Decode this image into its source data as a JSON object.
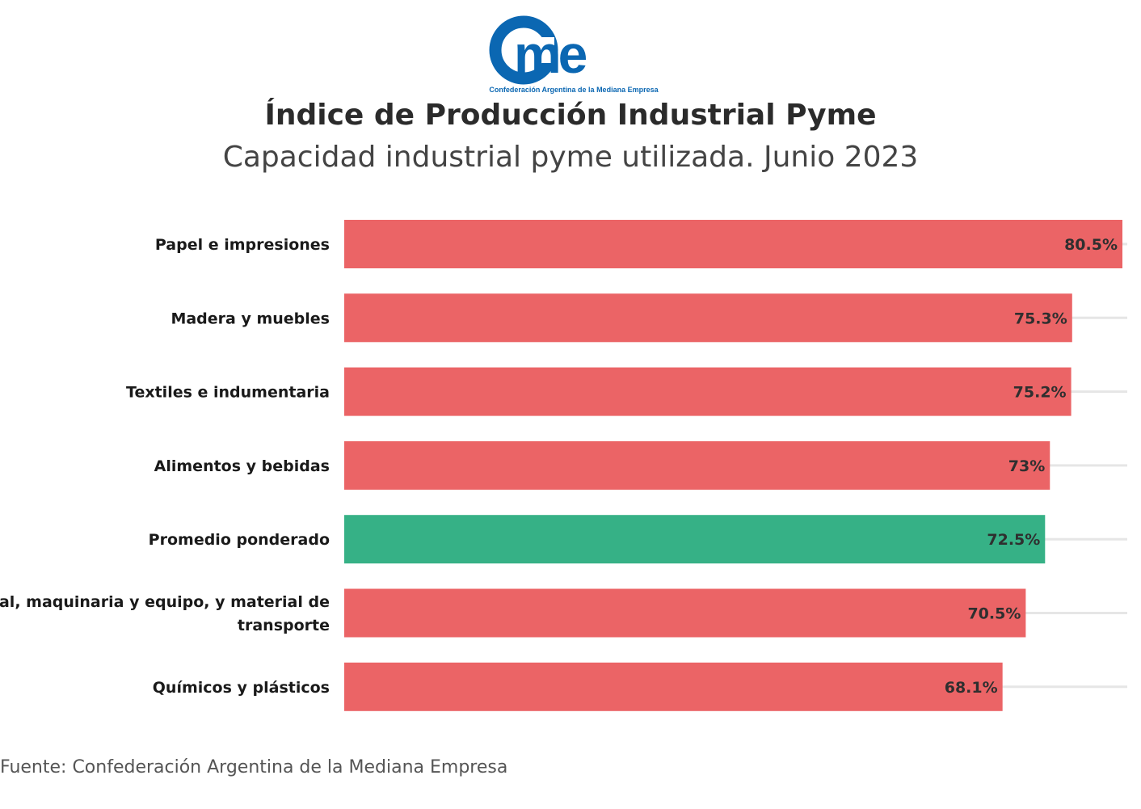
{
  "logo": {
    "wordmark": "came",
    "tagline": "Confederación Argentina de la Mediana Empresa",
    "color": "#0b67b2"
  },
  "title": "Índice de Producción Industrial Pyme",
  "subtitle": "Capacidad industrial pyme utilizada. Junio 2023",
  "source": "Fuente: Confederación Argentina de la Mediana Empresa",
  "chart_data": {
    "type": "bar",
    "orientation": "horizontal",
    "categories": [
      "Papel e impresiones",
      "Madera y muebles",
      "Textiles e indumentaria",
      "Alimentos y bebidas",
      "Promedio ponderado",
      "Metal, maquinaria y equipo, y material de transporte",
      "Químicos y plásticos"
    ],
    "values": [
      80.5,
      75.3,
      75.2,
      73,
      72.5,
      70.5,
      68.1
    ],
    "value_labels": [
      "80.5%",
      "75.3%",
      "75.2%",
      "73%",
      "72.5%",
      "70.5%",
      "68.1%"
    ],
    "colors": [
      "#eb6466",
      "#eb6466",
      "#eb6466",
      "#eb6466",
      "#36b186",
      "#eb6466",
      "#eb6466"
    ],
    "xlim": [
      0,
      80.5
    ],
    "grid": true,
    "legend": "none"
  }
}
